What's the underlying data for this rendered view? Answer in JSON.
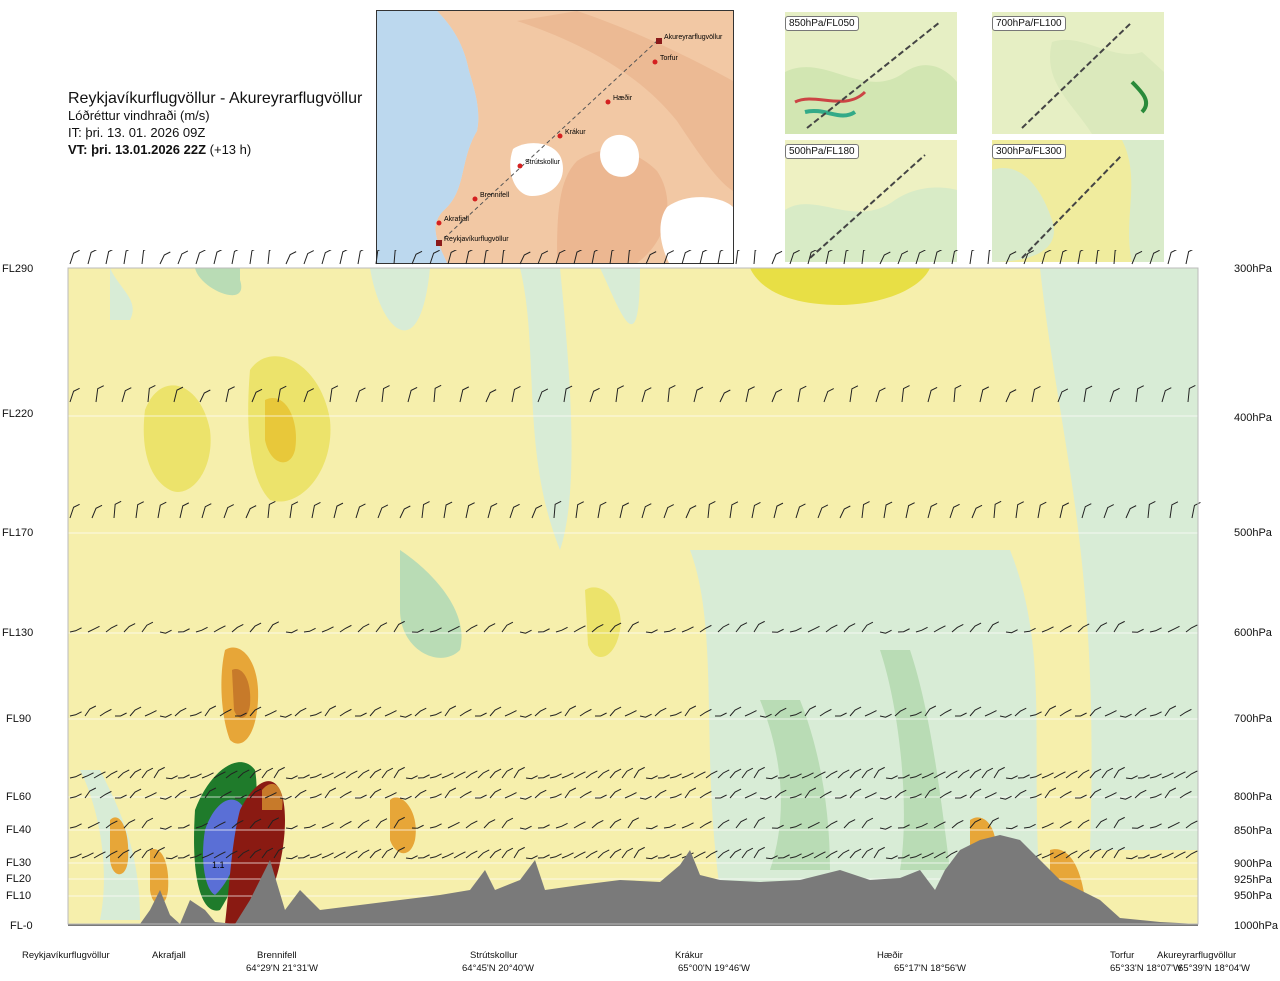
{
  "header": {
    "route": "Reykjavíkurflugvöllur - Akureyrarflugvöllur",
    "quantity": "Lóðréttur vindhraði (m/s)",
    "issue_time": "IT: þri. 13. 01. 2026 09Z",
    "valid_time_bold": "VT: þri. 13.01.2026 22Z",
    "valid_offset": "(+13 h)"
  },
  "route_map": {
    "waypoints": [
      "Akureyrarflugvöllur",
      "Torfur",
      "Hæðir",
      "Krákur",
      "Strútskollur",
      "Brennifell",
      "Akrafjall",
      "Reykjavíkurflugvöllur"
    ]
  },
  "level_maps": [
    {
      "label": "850hPa/FL050"
    },
    {
      "label": "700hPa/FL100"
    },
    {
      "label": "500hPa/FL180"
    },
    {
      "label": "300hPa/FL300"
    }
  ],
  "levels": [
    {
      "fl": "FL290",
      "hpa": "300hPa"
    },
    {
      "fl": "FL220",
      "hpa": "400hPa"
    },
    {
      "fl": "FL170",
      "hpa": "500hPa"
    },
    {
      "fl": "FL130",
      "hpa": "600hPa"
    },
    {
      "fl": "FL90",
      "hpa": "700hPa"
    },
    {
      "fl": "FL60",
      "hpa": "800hPa"
    },
    {
      "fl": "FL40",
      "hpa": "850hPa"
    },
    {
      "fl": "FL30",
      "hpa": "900hPa"
    },
    {
      "fl": "FL20",
      "hpa": "925hPa"
    },
    {
      "fl": "FL10",
      "hpa": "950hPa"
    },
    {
      "fl": "FL-0",
      "hpa": "1000hPa"
    }
  ],
  "plot_annotation": "1.1",
  "waypoints_axis": [
    {
      "name": "Reykjavíkurflugvöllur",
      "coord": ""
    },
    {
      "name": "Akrafjall",
      "coord": ""
    },
    {
      "name": "Brennifell",
      "coord": "64°29'N 21°31'W"
    },
    {
      "name": "Strútskollur",
      "coord": "64°45'N 20°40'W"
    },
    {
      "name": "Krákur",
      "coord": "65°00'N 19°46'W"
    },
    {
      "name": "Hæðir",
      "coord": "65°17'N 18°56'W"
    },
    {
      "name": "Torfur",
      "coord": "65°33'N 18°07'W"
    },
    {
      "name": "Akureyrarflugvöllur",
      "coord": "65°39'N 18°04'W"
    }
  ],
  "colors": {
    "weak_up": "#f5f0a8",
    "up1": "#ece36b",
    "up2": "#e8c83a",
    "up3": "#e7a638",
    "up4": "#c77a2a",
    "up5": "#8a1a12",
    "weak_down": "#d8ecd6",
    "down1": "#b9dcb5",
    "down2": "#8cc08a",
    "down3": "#2e8f3a",
    "down4": "#1e6a2c",
    "down5": "#5a6fd6",
    "terrain": "#7a7a7a"
  }
}
